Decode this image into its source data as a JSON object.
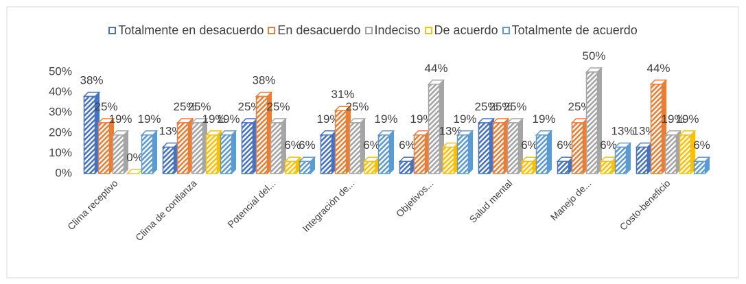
{
  "chart_data": {
    "type": "bar3d",
    "categories": [
      "Clima receptivo",
      "Clima de confianza",
      "Potencial del...",
      "Integración de...",
      "Objetivos...",
      "Salud mental",
      "Manejo de...",
      "Costo-beneficio"
    ],
    "series": [
      {
        "name": "Totalmente en desacuerdo",
        "color": "#4472c4",
        "values": [
          38,
          13,
          25,
          19,
          6,
          25,
          6,
          13
        ],
        "value_labels": [
          "38%",
          "13%",
          "25%",
          "19%",
          "6%",
          "25%",
          "6%",
          "13%"
        ]
      },
      {
        "name": "En desacuerdo",
        "color": "#ed7d31",
        "values": [
          25,
          25,
          38,
          31,
          19,
          25,
          25,
          44
        ],
        "value_labels": [
          "25%",
          "25%",
          "38%",
          "31%",
          "19%",
          "25%",
          "25%",
          "44%"
        ]
      },
      {
        "name": "Indeciso",
        "color": "#a5a5a5",
        "values": [
          19,
          25,
          25,
          25,
          44,
          25,
          50,
          19
        ],
        "value_labels": [
          "19%",
          "25%",
          "25%",
          "25%",
          "44%",
          "25%",
          "50%",
          "19%"
        ]
      },
      {
        "name": "De acuerdo",
        "color": "#ffc000",
        "values": [
          0,
          19,
          6,
          6,
          13,
          6,
          6,
          19
        ],
        "value_labels": [
          "0%",
          "19%",
          "6%",
          "6%",
          "13%",
          "6%",
          "6%",
          "19%"
        ]
      },
      {
        "name": "Totalmente de acuerdo",
        "color": "#5b9bd5",
        "values": [
          19,
          19,
          6,
          19,
          19,
          19,
          13,
          6
        ],
        "value_labels": [
          "19%",
          "19%",
          "6%",
          "19%",
          "19%",
          "19%",
          "13%",
          "6%"
        ]
      }
    ],
    "ylim": [
      0,
      50
    ],
    "yticks": [
      {
        "value": 0,
        "label": "0%"
      },
      {
        "value": 10,
        "label": "10%"
      },
      {
        "value": 20,
        "label": "20%"
      },
      {
        "value": 30,
        "label": "30%"
      },
      {
        "value": 40,
        "label": "40%"
      },
      {
        "value": 50,
        "label": "50%"
      }
    ],
    "legend": "top"
  }
}
